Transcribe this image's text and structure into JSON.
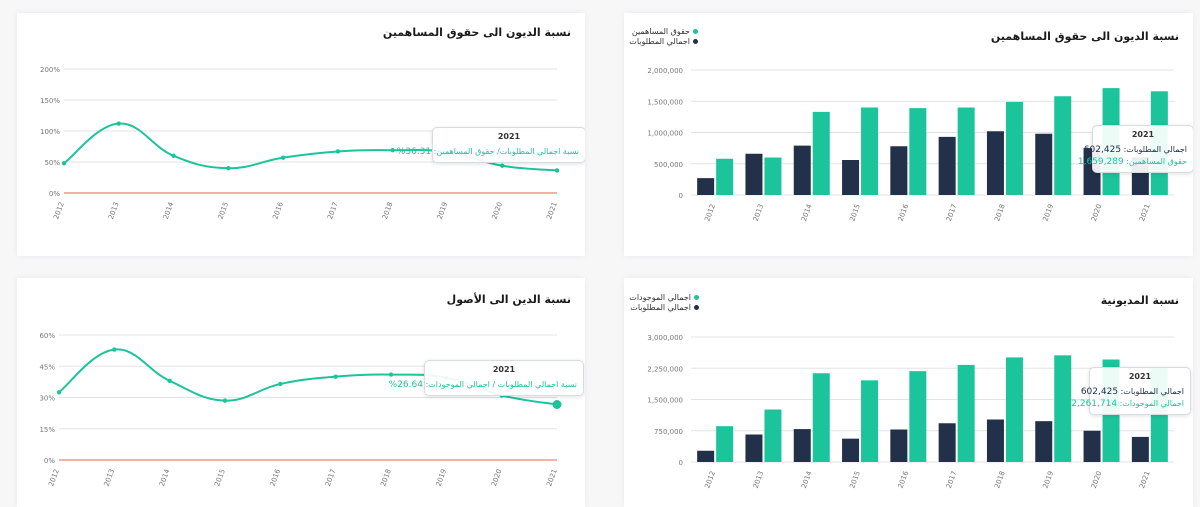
{
  "colors": {
    "teal": "#1cc49c",
    "navy": "#233049",
    "grid": "#e3e3e3",
    "zero": "#e8624a",
    "axis_text": "#777777"
  },
  "cards": {
    "debt_equity_line": {
      "title": "نسبة الديون الى حقوق المساهمين",
      "tooltip": {
        "year": "2021",
        "label": "نسبة اجمالي المطلوبات/ حقوق المساهمين:",
        "value": "36.31%"
      }
    },
    "debt_equity_bar": {
      "title": "نسبة الديون الى حقوق المساهمين",
      "legend": [
        {
          "name": "حقوق المساهمين",
          "color": "#1cc49c"
        },
        {
          "name": "اجمالي المطلوبات",
          "color": "#233049"
        }
      ],
      "tooltip": {
        "year": "2021",
        "rows": [
          {
            "label": "اجمالي المطلوبات:",
            "value": "602,425",
            "kind": "dark"
          },
          {
            "label": "حقوق المساهمين:",
            "value": "1,659,289",
            "kind": "green"
          }
        ]
      }
    },
    "debt_assets_line": {
      "title": "نسبة الدين الى الأصول",
      "tooltip": {
        "year": "2021",
        "label": "نسبة اجمالي المطلوبات / اجمالي الموجودات:",
        "value": "26.64%"
      }
    },
    "indebtedness_bar": {
      "title": "نسبة المديونية",
      "legend": [
        {
          "name": "اجمالي الموجودات",
          "color": "#1cc49c"
        },
        {
          "name": "اجمالي المطلوبات",
          "color": "#233049"
        }
      ],
      "tooltip": {
        "year": "2021",
        "rows": [
          {
            "label": "اجمالي المطلوبات:",
            "value": "602,425",
            "kind": "dark"
          },
          {
            "label": "اجمالي الموجودات:",
            "value": "2,261,714",
            "kind": "green"
          }
        ]
      }
    }
  },
  "chart_data": [
    {
      "id": "debt_equity_line",
      "type": "line",
      "title": "نسبة الديون الى حقوق المساهمين",
      "categories": [
        "2012",
        "2013",
        "2014",
        "2015",
        "2016",
        "2017",
        "2018",
        "2019",
        "2020",
        "2021"
      ],
      "values": [
        48,
        112,
        60,
        40,
        57,
        67,
        69,
        66,
        44,
        36.31
      ],
      "y_ticks": [
        "0%",
        "50%",
        "100%",
        "150%",
        "200%"
      ],
      "ylim": [
        0,
        200
      ],
      "grid": true
    },
    {
      "id": "debt_equity_bar",
      "type": "bar",
      "title": "نسبة الديون الى حقوق المساهمين",
      "categories": [
        "2012",
        "2013",
        "2014",
        "2015",
        "2016",
        "2017",
        "2018",
        "2019",
        "2020",
        "2021"
      ],
      "series": [
        {
          "name": "اجمالي المطلوبات",
          "values": [
            270000,
            660000,
            790000,
            560000,
            780000,
            930000,
            1020000,
            980000,
            750000,
            602425
          ]
        },
        {
          "name": "حقوق المساهمين",
          "values": [
            580000,
            600000,
            1330000,
            1400000,
            1390000,
            1400000,
            1490000,
            1580000,
            1710000,
            1659289
          ]
        }
      ],
      "y_ticks": [
        "0",
        "500,000",
        "1,000,000",
        "1,500,000",
        "2,000,000"
      ],
      "ylim": [
        0,
        2000000
      ],
      "grid": true,
      "legend": "top-right"
    },
    {
      "id": "debt_assets_line",
      "type": "line",
      "title": "نسبة الدين الى الأصول",
      "categories": [
        "2012",
        "2013",
        "2014",
        "2015",
        "2016",
        "2017",
        "2018",
        "2019",
        "2020",
        "2021"
      ],
      "values": [
        32.5,
        53,
        38,
        28.5,
        36.5,
        40,
        41,
        39.5,
        31,
        26.64
      ],
      "y_ticks": [
        "0%",
        "15%",
        "30%",
        "45%",
        "60%"
      ],
      "ylim": [
        0,
        60
      ],
      "grid": true
    },
    {
      "id": "indebtedness_bar",
      "type": "bar",
      "title": "نسبة المديونية",
      "categories": [
        "2012",
        "2013",
        "2014",
        "2015",
        "2016",
        "2017",
        "2018",
        "2019",
        "2020",
        "2021"
      ],
      "series": [
        {
          "name": "اجمالي المطلوبات",
          "values": [
            270000,
            660000,
            790000,
            560000,
            780000,
            930000,
            1020000,
            980000,
            750000,
            602425
          ]
        },
        {
          "name": "اجمالي الموجودات",
          "values": [
            860000,
            1260000,
            2130000,
            1960000,
            2180000,
            2330000,
            2510000,
            2560000,
            2460000,
            2261714
          ]
        }
      ],
      "y_ticks": [
        "0",
        "750,000",
        "1,500,000",
        "2,250,000",
        "3,000,000"
      ],
      "ylim": [
        0,
        3000000
      ],
      "grid": true,
      "legend": "top-right"
    }
  ]
}
